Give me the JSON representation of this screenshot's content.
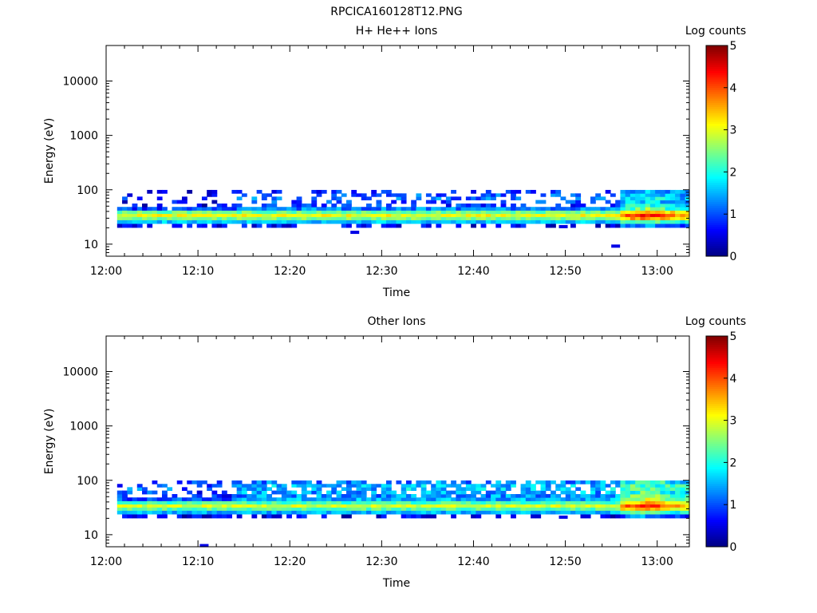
{
  "figure_title": "RPCICA160128T12.PNG",
  "chart_data": [
    {
      "type": "heatmap",
      "title": "H+ He++ Ions",
      "xlabel": "Time",
      "ylabel": "Energy (eV)",
      "x_ticks": [
        "12:00",
        "12:10",
        "12:20",
        "12:30",
        "12:40",
        "12:50",
        "13:00"
      ],
      "y_ticks": [
        "10",
        "100",
        "1000",
        "10000"
      ],
      "y_scale": "log",
      "ylim": [
        6,
        45000
      ],
      "xlim_minutes": [
        0,
        63.5
      ],
      "colorbar": {
        "label": "Log counts",
        "ticks": [
          "0",
          "1",
          "2",
          "3",
          "4",
          "5"
        ],
        "range": [
          0,
          5
        ],
        "colormap": "jet"
      },
      "seed": 11,
      "bands": [
        {
          "e": 22,
          "base": 0.55,
          "jitter": 0.4,
          "prob": 0.55
        },
        {
          "e": 26,
          "base": 1.6,
          "jitter": 0.3,
          "prob": 1.0
        },
        {
          "e": 30,
          "base": 2.5,
          "jitter": 0.3,
          "prob": 1.0
        },
        {
          "e": 34,
          "base": 3.0,
          "jitter": 0.3,
          "prob": 1.0
        },
        {
          "e": 39,
          "base": 2.4,
          "jitter": 0.3,
          "prob": 1.0
        },
        {
          "e": 45,
          "base": 0.9,
          "jitter": 0.4,
          "prob": 0.9
        },
        {
          "e": 52,
          "base": 0.5,
          "jitter": 0.4,
          "prob": 0.3
        },
        {
          "e": 60,
          "base": 0.6,
          "jitter": 0.4,
          "prob": 0.25
        },
        {
          "e": 70,
          "base": 0.8,
          "jitter": 0.4,
          "prob": 0.25
        },
        {
          "e": 80,
          "base": 0.7,
          "jitter": 0.4,
          "prob": 0.25
        },
        {
          "e": 92,
          "base": 0.5,
          "jitter": 0.4,
          "prob": 0.2
        }
      ],
      "active_start_min": 14,
      "active_band_boost": 0.35,
      "storm": {
        "start_min": 55.5,
        "end_min": 63.5,
        "peak_min": 58.5,
        "boost": 1.3,
        "max_e": 100
      }
    },
    {
      "type": "heatmap",
      "title": "Other Ions",
      "xlabel": "Time",
      "ylabel": "Energy (eV)",
      "x_ticks": [
        "12:00",
        "12:10",
        "12:20",
        "12:30",
        "12:40",
        "12:50",
        "13:00"
      ],
      "y_ticks": [
        "10",
        "100",
        "1000",
        "10000"
      ],
      "y_scale": "log",
      "ylim": [
        6,
        45000
      ],
      "xlim_minutes": [
        0,
        63.5
      ],
      "colorbar": {
        "label": "Log counts",
        "ticks": [
          "0",
          "1",
          "2",
          "3",
          "4",
          "5"
        ],
        "range": [
          0,
          5
        ],
        "colormap": "jet"
      },
      "seed": 29,
      "bands": [
        {
          "e": 22,
          "base": 0.5,
          "jitter": 0.4,
          "prob": 0.5
        },
        {
          "e": 26,
          "base": 1.5,
          "jitter": 0.3,
          "prob": 1.0
        },
        {
          "e": 30,
          "base": 2.3,
          "jitter": 0.3,
          "prob": 1.0
        },
        {
          "e": 34,
          "base": 2.9,
          "jitter": 0.3,
          "prob": 1.0
        },
        {
          "e": 39,
          "base": 2.2,
          "jitter": 0.3,
          "prob": 1.0
        },
        {
          "e": 45,
          "base": 1.0,
          "jitter": 0.4,
          "prob": 1.0
        },
        {
          "e": 52,
          "base": 0.8,
          "jitter": 0.5,
          "prob": 0.55
        },
        {
          "e": 60,
          "base": 0.9,
          "jitter": 0.5,
          "prob": 0.45
        },
        {
          "e": 70,
          "base": 1.1,
          "jitter": 0.5,
          "prob": 0.4
        },
        {
          "e": 80,
          "base": 1.0,
          "jitter": 0.5,
          "prob": 0.4
        },
        {
          "e": 92,
          "base": 0.8,
          "jitter": 0.5,
          "prob": 0.35
        }
      ],
      "active_start_min": 14,
      "active_band_boost": 0.5,
      "storm": {
        "start_min": 55.5,
        "end_min": 63.5,
        "peak_min": 58.5,
        "boost": 1.4,
        "max_e": 100
      }
    }
  ]
}
